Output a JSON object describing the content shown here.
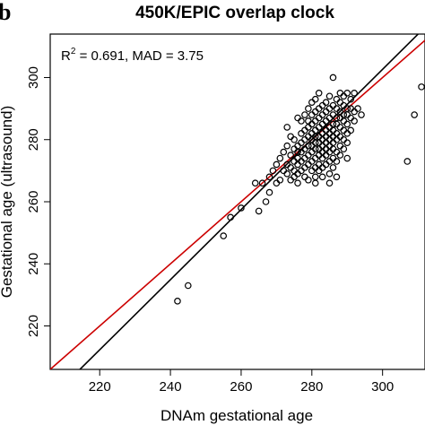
{
  "chart_data": {
    "type": "scatter",
    "panel_label": "b",
    "title": "450K/EPIC overlap clock",
    "xlabel": "DNAm gestational age",
    "ylabel": "Gestational age (ultrasound)",
    "annotation": {
      "r2_label": "R",
      "r2_sup": "2",
      "r2_rest": " = 0.691, MAD = 3.75"
    },
    "xlim": [
      206,
      312
    ],
    "ylim": [
      206,
      314
    ],
    "x_ticks": [
      220,
      240,
      260,
      280,
      300
    ],
    "y_ticks": [
      220,
      240,
      260,
      280,
      300
    ],
    "grid": false,
    "lines": [
      {
        "label": "identity",
        "color": "#cc0000",
        "x": [
          206,
          312
        ],
        "y": [
          206,
          312
        ]
      },
      {
        "label": "fit",
        "color": "#000000",
        "x": [
          214.4,
          312
        ],
        "y": [
          206,
          316.2
        ]
      }
    ],
    "points": [
      [
        242,
        228
      ],
      [
        245,
        233
      ],
      [
        255,
        249
      ],
      [
        257,
        255
      ],
      [
        260,
        258
      ],
      [
        264,
        266
      ],
      [
        266,
        266
      ],
      [
        265,
        257
      ],
      [
        267,
        260
      ],
      [
        268,
        263
      ],
      [
        268,
        268
      ],
      [
        269,
        270
      ],
      [
        270,
        266
      ],
      [
        270,
        272
      ],
      [
        271,
        267
      ],
      [
        271,
        274
      ],
      [
        272,
        270
      ],
      [
        272,
        276
      ],
      [
        273,
        269
      ],
      [
        273,
        272
      ],
      [
        273,
        278
      ],
      [
        273,
        284
      ],
      [
        274,
        267
      ],
      [
        274,
        271
      ],
      [
        274,
        275
      ],
      [
        274,
        281
      ],
      [
        275,
        268
      ],
      [
        275,
        270
      ],
      [
        275,
        273
      ],
      [
        275,
        277
      ],
      [
        275,
        280
      ],
      [
        276,
        266
      ],
      [
        276,
        269
      ],
      [
        276,
        272
      ],
      [
        276,
        274
      ],
      [
        276,
        276
      ],
      [
        276,
        278
      ],
      [
        276,
        287
      ],
      [
        277,
        270
      ],
      [
        277,
        273
      ],
      [
        277,
        276
      ],
      [
        277,
        279
      ],
      [
        277,
        282
      ],
      [
        277,
        286
      ],
      [
        278,
        268
      ],
      [
        278,
        271
      ],
      [
        278,
        274
      ],
      [
        278,
        277
      ],
      [
        278,
        280
      ],
      [
        278,
        283
      ],
      [
        278,
        288
      ],
      [
        279,
        267
      ],
      [
        279,
        272
      ],
      [
        279,
        275
      ],
      [
        279,
        278
      ],
      [
        279,
        281
      ],
      [
        279,
        284
      ],
      [
        279,
        286
      ],
      [
        279,
        290
      ],
      [
        280,
        270
      ],
      [
        280,
        273
      ],
      [
        280,
        276
      ],
      [
        280,
        278
      ],
      [
        280,
        280
      ],
      [
        280,
        282
      ],
      [
        280,
        285
      ],
      [
        280,
        288
      ],
      [
        280,
        292
      ],
      [
        281,
        266
      ],
      [
        281,
        268
      ],
      [
        281,
        271
      ],
      [
        281,
        274
      ],
      [
        281,
        277
      ],
      [
        281,
        279
      ],
      [
        281,
        281
      ],
      [
        281,
        283
      ],
      [
        281,
        286
      ],
      [
        281,
        289
      ],
      [
        281,
        293
      ],
      [
        282,
        270
      ],
      [
        282,
        272
      ],
      [
        282,
        275
      ],
      [
        282,
        277
      ],
      [
        282,
        279
      ],
      [
        282,
        281
      ],
      [
        282,
        284
      ],
      [
        282,
        287
      ],
      [
        282,
        290
      ],
      [
        282,
        295
      ],
      [
        283,
        268
      ],
      [
        283,
        271
      ],
      [
        283,
        274
      ],
      [
        283,
        276
      ],
      [
        283,
        278
      ],
      [
        283,
        280
      ],
      [
        283,
        282
      ],
      [
        283,
        285
      ],
      [
        283,
        288
      ],
      [
        283,
        291
      ],
      [
        284,
        272
      ],
      [
        284,
        275
      ],
      [
        284,
        277
      ],
      [
        284,
        279
      ],
      [
        284,
        281
      ],
      [
        284,
        283
      ],
      [
        284,
        286
      ],
      [
        284,
        289
      ],
      [
        284,
        292
      ],
      [
        285,
        266
      ],
      [
        285,
        269
      ],
      [
        285,
        273
      ],
      [
        285,
        276
      ],
      [
        285,
        278
      ],
      [
        285,
        280
      ],
      [
        285,
        282
      ],
      [
        285,
        284
      ],
      [
        285,
        287
      ],
      [
        285,
        290
      ],
      [
        285,
        294
      ],
      [
        286,
        271
      ],
      [
        286,
        274
      ],
      [
        286,
        277
      ],
      [
        286,
        279
      ],
      [
        286,
        281
      ],
      [
        286,
        283
      ],
      [
        286,
        285
      ],
      [
        286,
        288
      ],
      [
        286,
        291
      ],
      [
        286,
        300
      ],
      [
        287,
        268
      ],
      [
        287,
        273
      ],
      [
        287,
        276
      ],
      [
        287,
        280
      ],
      [
        287,
        282
      ],
      [
        287,
        285
      ],
      [
        287,
        287
      ],
      [
        287,
        290
      ],
      [
        287,
        293
      ],
      [
        288,
        275
      ],
      [
        288,
        278
      ],
      [
        288,
        281
      ],
      [
        288,
        284
      ],
      [
        288,
        287
      ],
      [
        288,
        289
      ],
      [
        288,
        292
      ],
      [
        288,
        295
      ],
      [
        289,
        277
      ],
      [
        289,
        280
      ],
      [
        289,
        283
      ],
      [
        289,
        286
      ],
      [
        289,
        288
      ],
      [
        289,
        291
      ],
      [
        289,
        294
      ],
      [
        290,
        274
      ],
      [
        290,
        279
      ],
      [
        290,
        282
      ],
      [
        290,
        285
      ],
      [
        290,
        288
      ],
      [
        290,
        290
      ],
      [
        290,
        295
      ],
      [
        291,
        283
      ],
      [
        291,
        287
      ],
      [
        291,
        290
      ],
      [
        291,
        293
      ],
      [
        292,
        286
      ],
      [
        292,
        289
      ],
      [
        292,
        295
      ],
      [
        293,
        290
      ],
      [
        294,
        288
      ],
      [
        307,
        273
      ],
      [
        309,
        288
      ],
      [
        311,
        297
      ]
    ]
  }
}
